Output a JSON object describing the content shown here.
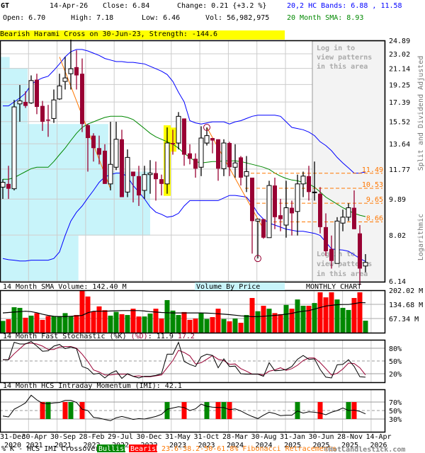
{
  "header": {
    "symbol": "GT",
    "date": "14-Apr-26",
    "close": "Close: 6.84",
    "change": "Change: 0.21 {+3.2 %}",
    "open": "Open: 6.70",
    "high": "High: 7.18",
    "low": "Low: 6.46",
    "volume": "Vol: 56,982,975",
    "bands": "20,2 HC Bands: 6.88 , 11.58",
    "sma": "20 Month SMA: 8.93",
    "pattern_banner": "Bearish Harami Cross on 30-Jun-23, Strength: -144.6"
  },
  "side_labels": {
    "adjusted": "Split and Dividend Adjusted",
    "scale": "Logarithmic"
  },
  "login_overlay": {
    "lines": [
      "Log in to",
      "view patterns",
      "in this area"
    ]
  },
  "colors": {
    "up_fill": "#ffffff",
    "down": "#990033",
    "upper_band": "#0000ff",
    "sma": "#008800",
    "fib": "#ff7700",
    "vol_up": "#008800",
    "vol_down": "#ff0000",
    "highlight": "#ffff00",
    "vbp": "#c8f4fa",
    "stoch_d": "#990033"
  },
  "chart_data": [
    {
      "type": "candlestick",
      "title": "",
      "scale": "log",
      "ylim": [
        6.14,
        24.89
      ],
      "y_ticks": [
        "24.89",
        "23.02",
        "21.14",
        "19.25",
        "17.39",
        "15.52",
        "13.64",
        "11.77",
        "9.89",
        "8.02",
        "6.14"
      ],
      "x_tick_labels": [
        [
          "31-Dec",
          "2020"
        ],
        [
          "30-Apr",
          "2021"
        ],
        [
          "30-Sep",
          "2021"
        ],
        [
          "28-Feb",
          "2022"
        ],
        [
          "29-Jul",
          "2022"
        ],
        [
          "30-Dec",
          "2022"
        ],
        [
          "31-May",
          "2023"
        ],
        [
          "31-Oct",
          "2023"
        ],
        [
          "28-Mar",
          "2024"
        ],
        [
          "30-Aug",
          "2024"
        ],
        [
          "31-Jan",
          "2025"
        ],
        [
          "30-Jun",
          "2025"
        ],
        [
          "28-Nov",
          "2025"
        ],
        [
          "14-Apr",
          "2026"
        ]
      ],
      "ohlc": [
        [
          10.6,
          11.1,
          9.9,
          10.9
        ],
        [
          10.8,
          12.0,
          9.9,
          10.5
        ],
        [
          10.5,
          17.6,
          10.4,
          16.9
        ],
        [
          17.2,
          19.2,
          15.5,
          17.5
        ],
        [
          17.4,
          18.5,
          16.8,
          17.0
        ],
        [
          17.3,
          20.3,
          17.2,
          19.7
        ],
        [
          19.8,
          20.5,
          16.2,
          16.9
        ],
        [
          17.0,
          17.5,
          14.7,
          15.5
        ],
        [
          15.7,
          17.1,
          14.2,
          15.6
        ],
        [
          15.8,
          18.7,
          15.4,
          17.6
        ],
        [
          17.7,
          20.5,
          17.6,
          19.1
        ],
        [
          19.6,
          22.6,
          18.7,
          20.0
        ],
        [
          20.5,
          25.0,
          18.7,
          21.1
        ],
        [
          21.3,
          23.5,
          18.7,
          20.3
        ],
        [
          20.5,
          22.4,
          14.6,
          15.3
        ],
        [
          15.2,
          15.3,
          11.6,
          14.1
        ],
        [
          14.3,
          14.5,
          12.3,
          13.3
        ],
        [
          13.3,
          14.3,
          12.1,
          12.8
        ],
        [
          13.1,
          13.6,
          10.8,
          10.8
        ],
        [
          10.8,
          15.5,
          10.4,
          12.1
        ],
        [
          11.9,
          15.5,
          11.7,
          14.0
        ],
        [
          14.0,
          14.8,
          10.0,
          10.0
        ],
        [
          10.3,
          13.2,
          10.0,
          12.6
        ],
        [
          11.6,
          11.6,
          9.7,
          11.3
        ],
        [
          11.3,
          12.0,
          9.5,
          10.1
        ],
        [
          10.4,
          12.0,
          9.9,
          11.4
        ],
        [
          11.4,
          12.4,
          10.2,
          11.5
        ],
        [
          11.5,
          12.3,
          9.8,
          11.1
        ],
        [
          11.1,
          11.4,
          10.1,
          10.8
        ],
        [
          10.8,
          15.0,
          10.2,
          13.7
        ],
        [
          13.7,
          14.8,
          12.8,
          13.6
        ],
        [
          13.7,
          16.4,
          13.2,
          16.0
        ],
        [
          15.8,
          15.8,
          12.0,
          12.8
        ],
        [
          12.9,
          13.6,
          12.1,
          12.5
        ],
        [
          12.5,
          12.9,
          11.2,
          11.8
        ],
        [
          11.9,
          15.1,
          11.3,
          14.1
        ],
        [
          13.7,
          15.0,
          13.5,
          14.3
        ],
        [
          14.1,
          14.1,
          12.9,
          13.9
        ],
        [
          14.0,
          14.0,
          11.0,
          11.8
        ],
        [
          11.8,
          14.0,
          11.3,
          13.7
        ],
        [
          13.7,
          13.8,
          11.3,
          11.9
        ],
        [
          11.9,
          13.6,
          11.2,
          12.2
        ],
        [
          12.6,
          12.7,
          10.7,
          11.2
        ],
        [
          11.3,
          12.7,
          10.3,
          11.6
        ],
        [
          11.2,
          11.2,
          7.2,
          8.7
        ],
        [
          8.7,
          8.8,
          7.0,
          8.8
        ],
        [
          8.8,
          8.8,
          7.85,
          7.9
        ],
        [
          7.9,
          11.0,
          7.9,
          10.7
        ],
        [
          10.7,
          11.2,
          8.3,
          8.9
        ],
        [
          9.0,
          9.9,
          8.2,
          8.8
        ],
        [
          8.5,
          11.0,
          7.9,
          9.4
        ],
        [
          9.4,
          9.8,
          8.0,
          9.1
        ],
        [
          9.2,
          11.4,
          8.0,
          10.8
        ],
        [
          10.8,
          11.6,
          10.0,
          11.3
        ],
        [
          11.3,
          12.0,
          9.8,
          10.3
        ],
        [
          10.3,
          12.3,
          9.8,
          10.3
        ],
        [
          10.2,
          10.6,
          8.1,
          8.4
        ],
        [
          8.4,
          9.1,
          7.1,
          7.3
        ],
        [
          7.4,
          8.0,
          6.6,
          6.9
        ],
        [
          6.8,
          8.9,
          6.8,
          8.7
        ],
        [
          8.6,
          9.3,
          8.2,
          8.9
        ],
        [
          8.9,
          9.65,
          8.7,
          9.4
        ],
        [
          9.4,
          10.4,
          8.3,
          8.3
        ],
        [
          8.1,
          8.5,
          6.0,
          6.6
        ],
        [
          6.7,
          7.18,
          6.46,
          6.84
        ]
      ],
      "upper_band": [
        17.0,
        17.0,
        17.4,
        17.8,
        18.3,
        19.25,
        19.7,
        20.0,
        20.2,
        20.9,
        21.7,
        22.6,
        23.3,
        23.6,
        23.6,
        23.4,
        23.1,
        22.8,
        22.4,
        22.2,
        22.0,
        22.0,
        21.9,
        21.9,
        21.8,
        21.7,
        21.4,
        21.1,
        20.8,
        20.4,
        19.6,
        18.4,
        17.4,
        15.6,
        15.4,
        15.3,
        15.4,
        15.5,
        15.5,
        15.5,
        15.3,
        15.5,
        15.6,
        15.8,
        16.0,
        16.1,
        16.1,
        16.1,
        16.1,
        16.0,
        15.5,
        15.0,
        14.9,
        14.8,
        14.6,
        14.3,
        13.8,
        13.5,
        13.1,
        12.6,
        12.2,
        11.85,
        11.5,
        11.5,
        11.58
      ],
      "lower_band": [
        7.0,
        6.95,
        6.93,
        6.9,
        6.9,
        6.93,
        6.93,
        6.93,
        6.93,
        7.0,
        7.27,
        8.0,
        8.7,
        9.16,
        9.5,
        9.95,
        10.4,
        10.9,
        11.25,
        11.4,
        11.5,
        11.5,
        11.25,
        10.7,
        10.3,
        9.9,
        9.45,
        9.16,
        9.05,
        8.9,
        8.95,
        9.1,
        9.5,
        9.8,
        9.8,
        9.8,
        9.8,
        9.8,
        9.8,
        9.95,
        10.1,
        10.1,
        10.05,
        10.0,
        9.6,
        9.1,
        8.8,
        8.6,
        8.5,
        8.4,
        8.3,
        8.25,
        8.2,
        8.2,
        8.15,
        8.1,
        8.0,
        7.7,
        7.4,
        7.37,
        7.35,
        7.3,
        7.15,
        7.0,
        6.88
      ],
      "sma20": [
        11.1,
        11.1,
        11.2,
        11.4,
        11.6,
        11.8,
        11.9,
        11.9,
        11.9,
        12.3,
        12.8,
        13.3,
        13.9,
        14.5,
        15.0,
        15.3,
        15.5,
        15.7,
        15.9,
        16.0,
        16.0,
        16.0,
        15.9,
        15.7,
        15.3,
        14.9,
        14.5,
        14.2,
        14.0,
        13.8,
        13.6,
        13.3,
        12.9,
        12.6,
        12.3,
        12.2,
        12.25,
        12.3,
        12.3,
        12.35,
        12.35,
        12.35,
        12.3,
        12.2,
        12.1,
        12.0,
        11.9,
        11.75,
        11.5,
        11.3,
        11.15,
        11.05,
        11.0,
        10.9,
        10.8,
        10.6,
        10.3,
        10.0,
        9.8,
        9.6,
        9.4,
        9.25,
        9.1,
        9.0,
        8.93
      ],
      "fib_levels": [
        {
          "label": "11.49",
          "value": 11.49,
          "from_index": 42
        },
        {
          "label": "10.53",
          "value": 10.53,
          "from_index": 43
        },
        {
          "label": "9.65",
          "value": 9.65,
          "from_index": 45
        },
        {
          "label": "8.66",
          "value": 8.66,
          "from_index": 46
        }
      ],
      "trend_lines": [
        [
          [
            10,
            22.6
          ],
          [
            19,
            10.5
          ]
        ],
        [
          [
            36,
            15.0
          ],
          [
            46,
            8.3
          ]
        ]
      ],
      "circled": [
        [
          36,
          15.0
        ],
        [
          45,
          7.0
        ]
      ],
      "highlighted_indices": [
        29,
        30
      ],
      "volume_by_price": [
        {
          "from": 21.2,
          "to": 22.6,
          "relative": 0.06
        },
        {
          "from": 15.3,
          "to": 21.2,
          "relative": 0.18
        },
        {
          "from": 11.6,
          "to": 15.3,
          "relative": 0.72
        },
        {
          "from": 8.0,
          "to": 11.6,
          "relative": 1.0
        },
        {
          "from": 6.14,
          "to": 8.0,
          "relative": 0.52
        }
      ]
    },
    {
      "type": "bar",
      "title": "14 Month SMA Volume: 142.40 M",
      "vbp_label": "Volume By Price",
      "period_label": "MONTHLY CHART",
      "ylim": [
        0,
        202.02
      ],
      "y_ticks": [
        "202.02 M",
        "134.68 M",
        "67.34 M"
      ],
      "values_millions": [
        56,
        64,
        121,
        118,
        71,
        81,
        93,
        61,
        79,
        79,
        79,
        93,
        79,
        84,
        200,
        172,
        101,
        125,
        107,
        81,
        99,
        88,
        84,
        114,
        77,
        77,
        91,
        114,
        67,
        155,
        105,
        84,
        98,
        61,
        67,
        93,
        65,
        74,
        114,
        65,
        54,
        67,
        47,
        84,
        165,
        102,
        128,
        114,
        93,
        88,
        132,
        114,
        158,
        128,
        128,
        141,
        192,
        168,
        192,
        158,
        118,
        108,
        165,
        192,
        57
      ],
      "colors": [
        "g",
        "r",
        "g",
        "g",
        "r",
        "g",
        "r",
        "r",
        "r",
        "g",
        "g",
        "g",
        "g",
        "r",
        "r",
        "r",
        "r",
        "r",
        "r",
        "g",
        "g",
        "r",
        "g",
        "r",
        "r",
        "g",
        "g",
        "r",
        "r",
        "g",
        "g",
        "g",
        "r",
        "r",
        "r",
        "g",
        "g",
        "r",
        "r",
        "g",
        "r",
        "g",
        "r",
        "g",
        "r",
        "g",
        "r",
        "g",
        "r",
        "r",
        "g",
        "r",
        "g",
        "g",
        "r",
        "g",
        "r",
        "r",
        "r",
        "g",
        "g",
        "g",
        "r",
        "r",
        "g"
      ],
      "sma14": [
        94,
        96,
        98,
        100,
        102,
        100,
        95,
        88,
        82,
        78,
        76,
        76,
        78,
        80,
        82,
        95,
        102,
        102,
        102,
        103,
        104,
        105,
        105,
        105,
        105,
        103,
        100,
        98,
        96,
        95,
        94,
        94,
        94,
        94,
        94,
        94,
        93,
        92,
        90,
        88,
        86,
        83,
        80,
        78,
        76,
        76,
        78,
        80,
        82,
        85,
        88,
        92,
        98,
        102,
        105,
        112,
        120,
        127,
        130,
        133,
        134,
        134,
        138,
        143,
        142.4
      ]
    },
    {
      "type": "line",
      "title_prefix": "14 Month Fast Stochastic (%K) ",
      "title_d": "(%D)",
      "title_k_value": ": 11.9",
      "title_d_value": "17.2",
      "ylim": [
        0,
        100
      ],
      "y_ticks": [
        "80%",
        "50%",
        "20%"
      ],
      "k": [
        53,
        53,
        94,
        90,
        90,
        96,
        85,
        73,
        74,
        85,
        89,
        79,
        83,
        79,
        37,
        32,
        19,
        21,
        10,
        21,
        27,
        9,
        20,
        14,
        10,
        14,
        14,
        16,
        20,
        66,
        66,
        94,
        49,
        42,
        37,
        60,
        66,
        63,
        34,
        55,
        37,
        38,
        20,
        19,
        19,
        19,
        14,
        46,
        27,
        28,
        30,
        37,
        54,
        63,
        54,
        55,
        30,
        12,
        10,
        41,
        42,
        53,
        37,
        13,
        11.9
      ],
      "d": [
        53,
        53,
        67,
        79,
        91,
        92,
        90,
        85,
        77,
        77,
        83,
        84,
        84,
        80,
        66,
        49,
        29,
        24,
        17,
        17,
        19,
        19,
        19,
        14,
        15,
        13,
        13,
        15,
        17,
        34,
        51,
        75,
        70,
        62,
        43,
        46,
        54,
        63,
        54,
        51,
        42,
        43,
        32,
        26,
        19,
        19,
        17,
        26,
        29,
        34,
        28,
        32,
        40,
        51,
        57,
        57,
        46,
        32,
        17,
        21,
        31,
        45,
        44,
        34,
        17.2
      ]
    },
    {
      "type": "line",
      "title": "14 Month HCS Intraday Momentum (IMI): 42.1",
      "ylim": [
        0,
        100
      ],
      "y_ticks": [
        "70%",
        "50%",
        "30%"
      ],
      "values": [
        37,
        35,
        53,
        60,
        68,
        86,
        75,
        67,
        66,
        68,
        69,
        74,
        74,
        69,
        53,
        50,
        34,
        32,
        29,
        26,
        33,
        36,
        33,
        29,
        31,
        30,
        33,
        36,
        41,
        53,
        56,
        59,
        57,
        50,
        54,
        65,
        60,
        58,
        57,
        57,
        52,
        54,
        49,
        42,
        36,
        31,
        39,
        46,
        43,
        38,
        39,
        39,
        49,
        44,
        47,
        46,
        44,
        40,
        46,
        50,
        56,
        50,
        51,
        48,
        42.1
      ],
      "crossovers": [
        {
          "index": 7,
          "type": "bearish"
        },
        {
          "index": 8,
          "type": "bullish"
        },
        {
          "index": 11,
          "type": "bearish"
        },
        {
          "index": 12,
          "type": "bullish"
        },
        {
          "index": 14,
          "type": "bearish"
        },
        {
          "index": 29,
          "type": "bullish"
        },
        {
          "index": 32,
          "type": "bearish"
        },
        {
          "index": 36,
          "type": "bullish"
        },
        {
          "index": 38,
          "type": "bearish"
        },
        {
          "index": 39,
          "type": "bullish"
        },
        {
          "index": 40,
          "type": "bearish"
        },
        {
          "index": 52,
          "type": "bullish"
        },
        {
          "index": 56,
          "type": "bearish"
        },
        {
          "index": 61,
          "type": "bullish"
        },
        {
          "index": 62,
          "type": "bearish"
        }
      ]
    }
  ],
  "footer": {
    "legend_prefix": "% K - HCS IMI Crossover,",
    "bullish": "Bullish",
    "bearish": "Bearish",
    "fib_note": "23.6-38.2-50-61.8% Fibonacci Retracements",
    "copyright": "©HotCandlestick.com"
  }
}
